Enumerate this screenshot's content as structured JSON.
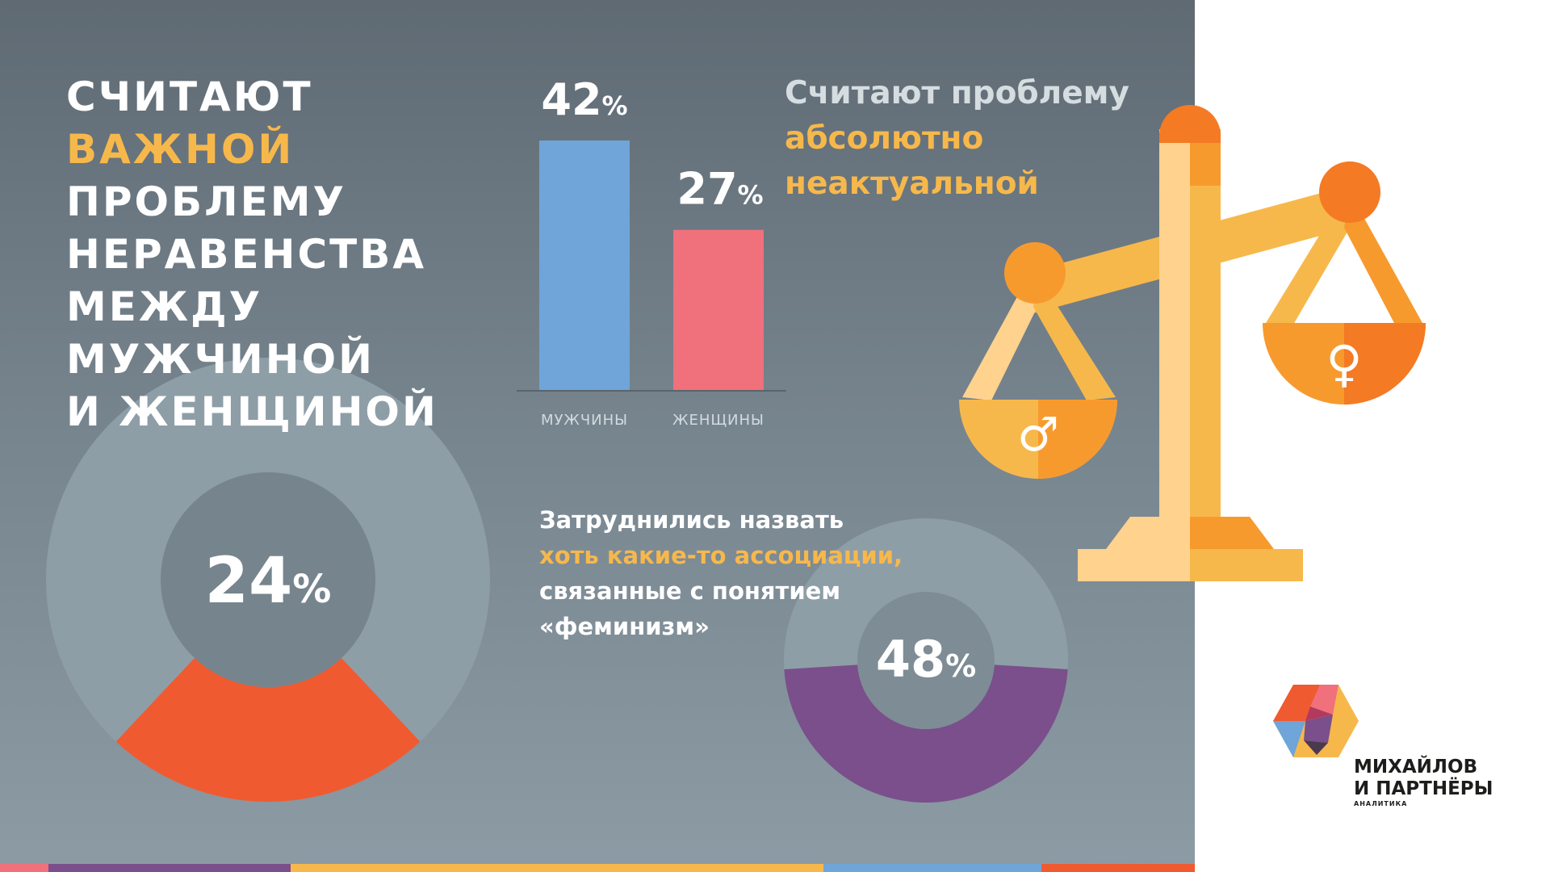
{
  "headline": {
    "lines": [
      "СЧИТАЮТ",
      "ВАЖНОЙ",
      "ПРОБЛЕМУ",
      "НЕРАВЕНСТВА",
      "МЕЖДУ",
      "МУЖЧИНОЙ",
      "И ЖЕНЩИНОЙ"
    ],
    "accent_line": 1
  },
  "not_relevant_text": {
    "lines": [
      "Считают проблему",
      "абсолютно",
      "неактуальной"
    ]
  },
  "no_association_text": {
    "lines": [
      "Затруднились назвать",
      "хоть какие-то ассоциации,",
      "связанные с понятием",
      "«феминизм»"
    ]
  },
  "scales": {
    "male_symbol": "♂",
    "female_symbol": "♀",
    "icon": "scales-icon"
  },
  "logo": {
    "name_lines": [
      "МИХАЙЛОВ",
      "И ПАРТНЁРЫ"
    ],
    "subtitle": "АНАЛИТИКА",
    "icon": "hexagon-logo-icon"
  },
  "colors": {
    "men": "#6fa5d8",
    "women": "#f0707c",
    "important_ring": "#f05a30",
    "unable_ring": "#7a4f8c",
    "accent": "#f7b84b",
    "ring_track": "#8e9ea7"
  },
  "chart_data": [
    {
      "type": "bar",
      "categories": [
        "МУЖЧИНЫ",
        "ЖЕНЩИНЫ"
      ],
      "values": [
        42,
        27
      ],
      "unit": "%",
      "ylim": [
        0,
        42
      ]
    },
    {
      "type": "pie",
      "value": 24,
      "unit": "%"
    },
    {
      "type": "pie",
      "value": 48,
      "unit": "%"
    }
  ]
}
